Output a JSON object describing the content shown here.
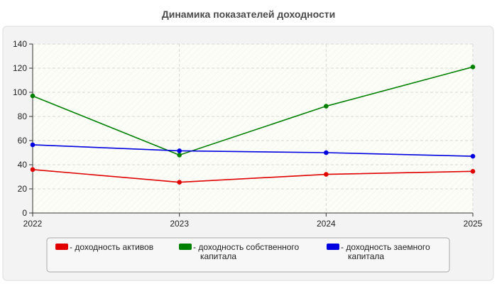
{
  "chart_data": {
    "type": "line",
    "title": "Динамика показателей доходности",
    "x": [
      "2022",
      "2023",
      "2024",
      "2025"
    ],
    "ylim": [
      0,
      140
    ],
    "yticks": [
      0,
      20,
      40,
      60,
      80,
      100,
      120,
      140
    ],
    "grid": true,
    "legend_position": "bottom",
    "series": [
      {
        "name": "- доходность активов",
        "name_lines": [
          "- доходность активов"
        ],
        "color": "#e00000",
        "values": [
          36,
          25.5,
          32,
          34.5
        ]
      },
      {
        "name": "- доходность собственного капитала",
        "name_lines": [
          "- доходность собственного",
          "капитала"
        ],
        "color": "#008000",
        "values": [
          97,
          48,
          88.5,
          121
        ]
      },
      {
        "name": "- доходность заемного капитала",
        "name_lines": [
          "- доходность заемного",
          "капитала"
        ],
        "color": "#0000e0",
        "values": [
          56.5,
          51.5,
          50,
          47
        ]
      }
    ]
  }
}
